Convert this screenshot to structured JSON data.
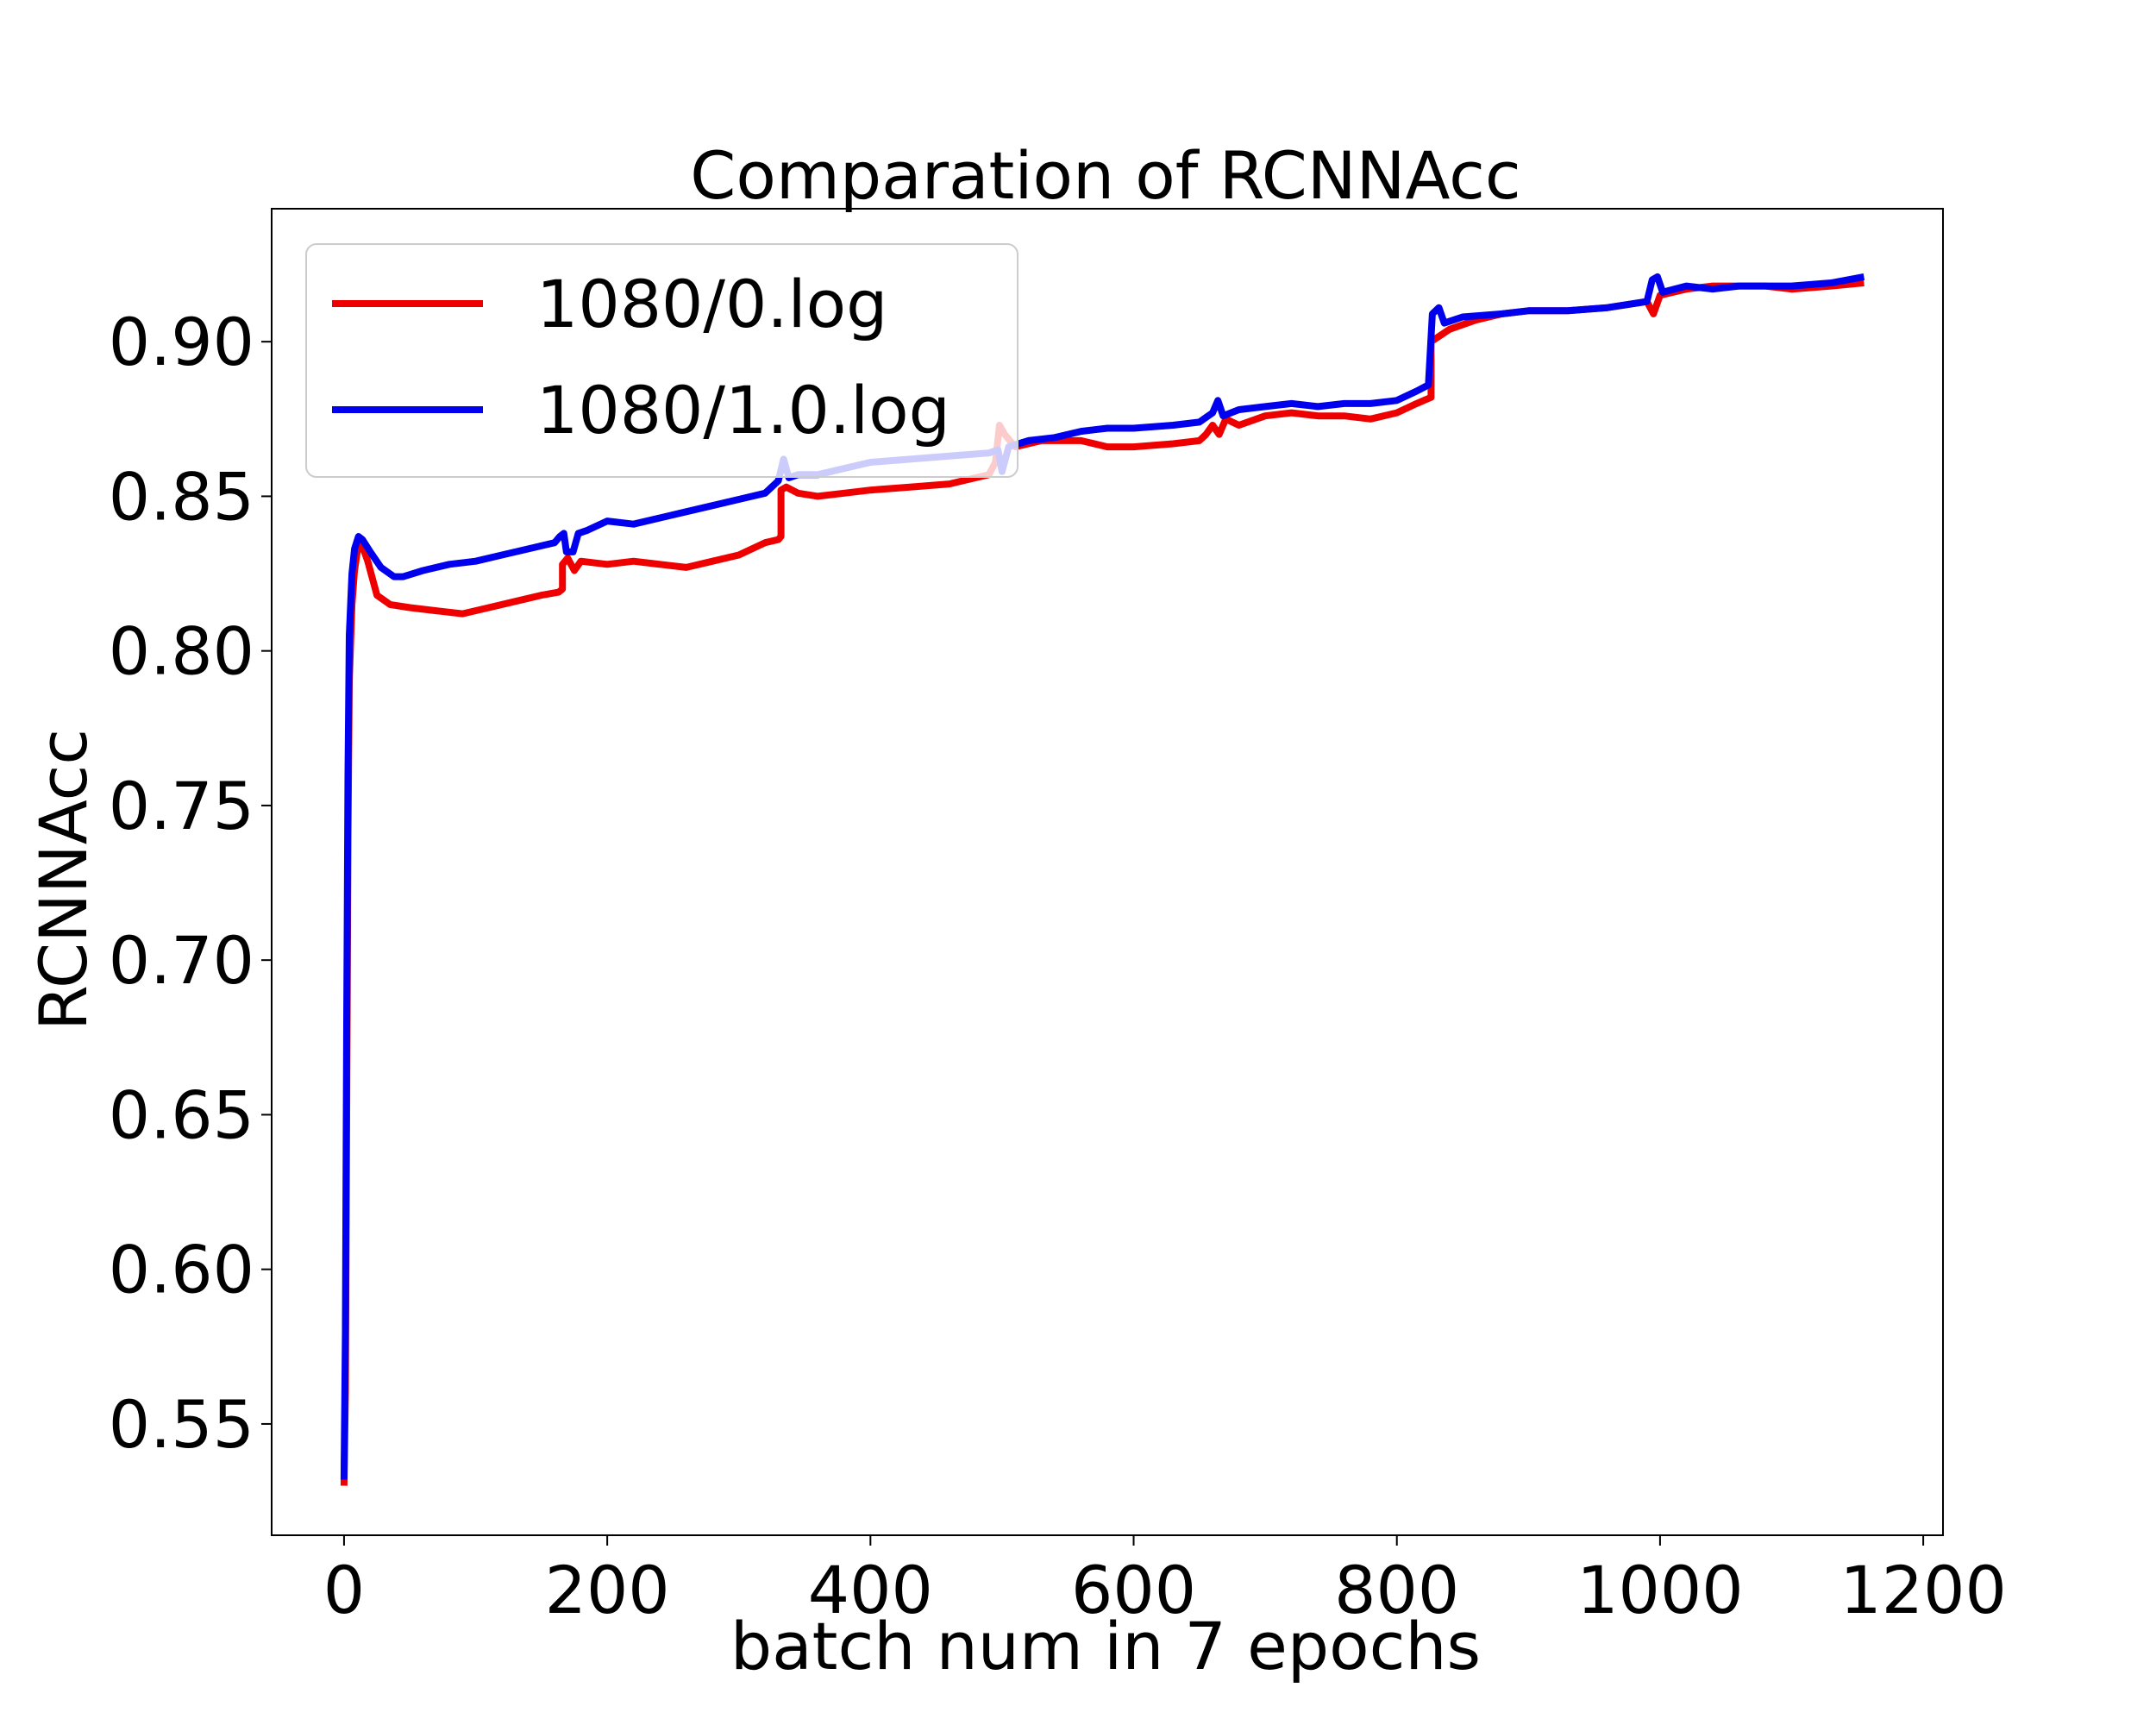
{
  "chart_data": {
    "type": "line",
    "title": "Comparation of RCNNAcc",
    "xlabel": "batch num in 7 epochs",
    "ylabel": "RCNNAcc",
    "xlim": [
      -55,
      1215
    ],
    "ylim": [
      0.514,
      0.943
    ],
    "xticks": [
      0,
      200,
      400,
      600,
      800,
      1000,
      1200
    ],
    "xtick_labels": [
      "0",
      "200",
      "400",
      "600",
      "800",
      "1000",
      "1200"
    ],
    "yticks": [
      0.55,
      0.6,
      0.65,
      0.7,
      0.75,
      0.8,
      0.85,
      0.9
    ],
    "ytick_labels": [
      "0.55",
      "0.60",
      "0.65",
      "0.70",
      "0.75",
      "0.80",
      "0.85",
      "0.90"
    ],
    "grid": false,
    "legend_position": "upper-left",
    "series": [
      {
        "name": "1080/0.log",
        "color": "#ee0000",
        "points": [
          [
            0,
            0.53
          ],
          [
            1,
            0.56
          ],
          [
            2,
            0.65
          ],
          [
            3,
            0.74
          ],
          [
            4,
            0.79
          ],
          [
            6,
            0.815
          ],
          [
            8,
            0.826
          ],
          [
            10,
            0.832
          ],
          [
            13,
            0.835
          ],
          [
            18,
            0.829
          ],
          [
            25,
            0.818
          ],
          [
            35,
            0.815
          ],
          [
            50,
            0.814
          ],
          [
            70,
            0.813
          ],
          [
            90,
            0.812
          ],
          [
            110,
            0.814
          ],
          [
            130,
            0.816
          ],
          [
            150,
            0.818
          ],
          [
            163,
            0.819
          ],
          [
            166,
            0.82
          ],
          [
            166,
            0.828
          ],
          [
            170,
            0.83
          ],
          [
            175,
            0.826
          ],
          [
            180,
            0.829
          ],
          [
            200,
            0.828
          ],
          [
            220,
            0.829
          ],
          [
            240,
            0.828
          ],
          [
            260,
            0.827
          ],
          [
            280,
            0.829
          ],
          [
            300,
            0.831
          ],
          [
            320,
            0.835
          ],
          [
            330,
            0.836
          ],
          [
            332,
            0.837
          ],
          [
            332,
            0.852
          ],
          [
            336,
            0.853
          ],
          [
            345,
            0.851
          ],
          [
            360,
            0.85
          ],
          [
            380,
            0.851
          ],
          [
            400,
            0.852
          ],
          [
            430,
            0.853
          ],
          [
            460,
            0.854
          ],
          [
            490,
            0.857
          ],
          [
            495,
            0.861
          ],
          [
            498,
            0.873
          ],
          [
            502,
            0.87
          ],
          [
            510,
            0.866
          ],
          [
            530,
            0.868
          ],
          [
            560,
            0.868
          ],
          [
            580,
            0.866
          ],
          [
            600,
            0.866
          ],
          [
            630,
            0.867
          ],
          [
            650,
            0.868
          ],
          [
            655,
            0.87
          ],
          [
            660,
            0.873
          ],
          [
            665,
            0.87
          ],
          [
            670,
            0.875
          ],
          [
            680,
            0.873
          ],
          [
            700,
            0.876
          ],
          [
            720,
            0.877
          ],
          [
            740,
            0.876
          ],
          [
            760,
            0.876
          ],
          [
            780,
            0.875
          ],
          [
            800,
            0.877
          ],
          [
            815,
            0.88
          ],
          [
            826,
            0.882
          ],
          [
            826,
            0.9
          ],
          [
            840,
            0.904
          ],
          [
            860,
            0.907
          ],
          [
            880,
            0.909
          ],
          [
            900,
            0.91
          ],
          [
            930,
            0.91
          ],
          [
            960,
            0.911
          ],
          [
            990,
            0.913
          ],
          [
            995,
            0.909
          ],
          [
            1000,
            0.915
          ],
          [
            1020,
            0.917
          ],
          [
            1040,
            0.918
          ],
          [
            1060,
            0.918
          ],
          [
            1080,
            0.918
          ],
          [
            1100,
            0.917
          ],
          [
            1130,
            0.918
          ],
          [
            1155,
            0.919
          ]
        ]
      },
      {
        "name": "1080/1.0.log",
        "color": "#0000ee",
        "points": [
          [
            0,
            0.532
          ],
          [
            1,
            0.58
          ],
          [
            2,
            0.68
          ],
          [
            3,
            0.76
          ],
          [
            4,
            0.805
          ],
          [
            6,
            0.825
          ],
          [
            8,
            0.833
          ],
          [
            11,
            0.837
          ],
          [
            14,
            0.836
          ],
          [
            20,
            0.832
          ],
          [
            28,
            0.827
          ],
          [
            38,
            0.824
          ],
          [
            45,
            0.824
          ],
          [
            60,
            0.826
          ],
          [
            80,
            0.828
          ],
          [
            100,
            0.829
          ],
          [
            120,
            0.831
          ],
          [
            140,
            0.833
          ],
          [
            160,
            0.835
          ],
          [
            164,
            0.837
          ],
          [
            167,
            0.838
          ],
          [
            169,
            0.832
          ],
          [
            174,
            0.832
          ],
          [
            178,
            0.838
          ],
          [
            185,
            0.839
          ],
          [
            200,
            0.842
          ],
          [
            220,
            0.841
          ],
          [
            240,
            0.843
          ],
          [
            260,
            0.845
          ],
          [
            280,
            0.847
          ],
          [
            300,
            0.849
          ],
          [
            320,
            0.851
          ],
          [
            330,
            0.855
          ],
          [
            334,
            0.862
          ],
          [
            338,
            0.856
          ],
          [
            345,
            0.857
          ],
          [
            360,
            0.857
          ],
          [
            380,
            0.859
          ],
          [
            400,
            0.861
          ],
          [
            430,
            0.862
          ],
          [
            460,
            0.863
          ],
          [
            490,
            0.864
          ],
          [
            497,
            0.865
          ],
          [
            500,
            0.858
          ],
          [
            505,
            0.866
          ],
          [
            520,
            0.868
          ],
          [
            540,
            0.869
          ],
          [
            560,
            0.871
          ],
          [
            580,
            0.872
          ],
          [
            600,
            0.872
          ],
          [
            630,
            0.873
          ],
          [
            650,
            0.874
          ],
          [
            660,
            0.877
          ],
          [
            664,
            0.881
          ],
          [
            668,
            0.876
          ],
          [
            680,
            0.878
          ],
          [
            700,
            0.879
          ],
          [
            720,
            0.88
          ],
          [
            740,
            0.879
          ],
          [
            760,
            0.88
          ],
          [
            780,
            0.88
          ],
          [
            800,
            0.881
          ],
          [
            815,
            0.884
          ],
          [
            824,
            0.886
          ],
          [
            827,
            0.909
          ],
          [
            832,
            0.911
          ],
          [
            836,
            0.906
          ],
          [
            850,
            0.908
          ],
          [
            880,
            0.909
          ],
          [
            900,
            0.91
          ],
          [
            930,
            0.91
          ],
          [
            960,
            0.911
          ],
          [
            990,
            0.913
          ],
          [
            994,
            0.92
          ],
          [
            998,
            0.921
          ],
          [
            1002,
            0.916
          ],
          [
            1020,
            0.918
          ],
          [
            1040,
            0.917
          ],
          [
            1060,
            0.918
          ],
          [
            1080,
            0.918
          ],
          [
            1100,
            0.918
          ],
          [
            1130,
            0.919
          ],
          [
            1155,
            0.921
          ]
        ]
      }
    ]
  }
}
